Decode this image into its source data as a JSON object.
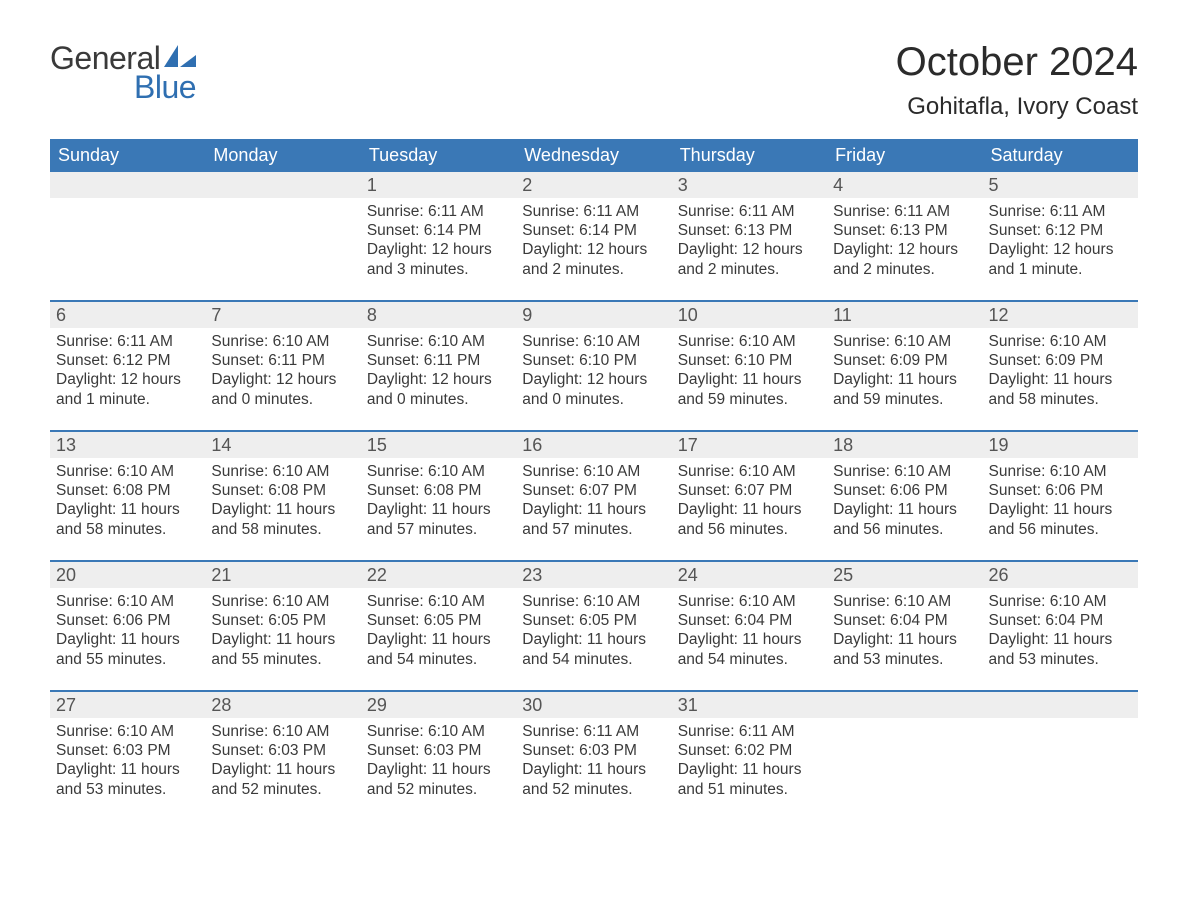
{
  "logo": {
    "part1": "General",
    "part2": "Blue",
    "sail_color": "#2f6fb1",
    "text_color_dark": "#3a3a3a"
  },
  "title": "October 2024",
  "location": "Gohitafla, Ivory Coast",
  "colors": {
    "header_bg": "#3a78b6",
    "header_text": "#ffffff",
    "daynum_bg": "#eeeeee",
    "daynum_text": "#555555",
    "body_text": "#3a3a3a",
    "rule": "#3a78b6",
    "page_bg": "#ffffff"
  },
  "typography": {
    "title_fontsize": 40,
    "location_fontsize": 24,
    "weekday_fontsize": 18,
    "daynum_fontsize": 18,
    "cell_fontsize": 15.5,
    "logo_fontsize": 32
  },
  "weekdays": [
    "Sunday",
    "Monday",
    "Tuesday",
    "Wednesday",
    "Thursday",
    "Friday",
    "Saturday"
  ],
  "weeks": [
    [
      {
        "day": "",
        "lines": [
          "",
          "",
          "",
          ""
        ]
      },
      {
        "day": "",
        "lines": [
          "",
          "",
          "",
          ""
        ]
      },
      {
        "day": "1",
        "lines": [
          "Sunrise: 6:11 AM",
          "Sunset: 6:14 PM",
          "Daylight: 12 hours",
          "and 3 minutes."
        ]
      },
      {
        "day": "2",
        "lines": [
          "Sunrise: 6:11 AM",
          "Sunset: 6:14 PM",
          "Daylight: 12 hours",
          "and 2 minutes."
        ]
      },
      {
        "day": "3",
        "lines": [
          "Sunrise: 6:11 AM",
          "Sunset: 6:13 PM",
          "Daylight: 12 hours",
          "and 2 minutes."
        ]
      },
      {
        "day": "4",
        "lines": [
          "Sunrise: 6:11 AM",
          "Sunset: 6:13 PM",
          "Daylight: 12 hours",
          "and 2 minutes."
        ]
      },
      {
        "day": "5",
        "lines": [
          "Sunrise: 6:11 AM",
          "Sunset: 6:12 PM",
          "Daylight: 12 hours",
          "and 1 minute."
        ]
      }
    ],
    [
      {
        "day": "6",
        "lines": [
          "Sunrise: 6:11 AM",
          "Sunset: 6:12 PM",
          "Daylight: 12 hours",
          "and 1 minute."
        ]
      },
      {
        "day": "7",
        "lines": [
          "Sunrise: 6:10 AM",
          "Sunset: 6:11 PM",
          "Daylight: 12 hours",
          "and 0 minutes."
        ]
      },
      {
        "day": "8",
        "lines": [
          "Sunrise: 6:10 AM",
          "Sunset: 6:11 PM",
          "Daylight: 12 hours",
          "and 0 minutes."
        ]
      },
      {
        "day": "9",
        "lines": [
          "Sunrise: 6:10 AM",
          "Sunset: 6:10 PM",
          "Daylight: 12 hours",
          "and 0 minutes."
        ]
      },
      {
        "day": "10",
        "lines": [
          "Sunrise: 6:10 AM",
          "Sunset: 6:10 PM",
          "Daylight: 11 hours",
          "and 59 minutes."
        ]
      },
      {
        "day": "11",
        "lines": [
          "Sunrise: 6:10 AM",
          "Sunset: 6:09 PM",
          "Daylight: 11 hours",
          "and 59 minutes."
        ]
      },
      {
        "day": "12",
        "lines": [
          "Sunrise: 6:10 AM",
          "Sunset: 6:09 PM",
          "Daylight: 11 hours",
          "and 58 minutes."
        ]
      }
    ],
    [
      {
        "day": "13",
        "lines": [
          "Sunrise: 6:10 AM",
          "Sunset: 6:08 PM",
          "Daylight: 11 hours",
          "and 58 minutes."
        ]
      },
      {
        "day": "14",
        "lines": [
          "Sunrise: 6:10 AM",
          "Sunset: 6:08 PM",
          "Daylight: 11 hours",
          "and 58 minutes."
        ]
      },
      {
        "day": "15",
        "lines": [
          "Sunrise: 6:10 AM",
          "Sunset: 6:08 PM",
          "Daylight: 11 hours",
          "and 57 minutes."
        ]
      },
      {
        "day": "16",
        "lines": [
          "Sunrise: 6:10 AM",
          "Sunset: 6:07 PM",
          "Daylight: 11 hours",
          "and 57 minutes."
        ]
      },
      {
        "day": "17",
        "lines": [
          "Sunrise: 6:10 AM",
          "Sunset: 6:07 PM",
          "Daylight: 11 hours",
          "and 56 minutes."
        ]
      },
      {
        "day": "18",
        "lines": [
          "Sunrise: 6:10 AM",
          "Sunset: 6:06 PM",
          "Daylight: 11 hours",
          "and 56 minutes."
        ]
      },
      {
        "day": "19",
        "lines": [
          "Sunrise: 6:10 AM",
          "Sunset: 6:06 PM",
          "Daylight: 11 hours",
          "and 56 minutes."
        ]
      }
    ],
    [
      {
        "day": "20",
        "lines": [
          "Sunrise: 6:10 AM",
          "Sunset: 6:06 PM",
          "Daylight: 11 hours",
          "and 55 minutes."
        ]
      },
      {
        "day": "21",
        "lines": [
          "Sunrise: 6:10 AM",
          "Sunset: 6:05 PM",
          "Daylight: 11 hours",
          "and 55 minutes."
        ]
      },
      {
        "day": "22",
        "lines": [
          "Sunrise: 6:10 AM",
          "Sunset: 6:05 PM",
          "Daylight: 11 hours",
          "and 54 minutes."
        ]
      },
      {
        "day": "23",
        "lines": [
          "Sunrise: 6:10 AM",
          "Sunset: 6:05 PM",
          "Daylight: 11 hours",
          "and 54 minutes."
        ]
      },
      {
        "day": "24",
        "lines": [
          "Sunrise: 6:10 AM",
          "Sunset: 6:04 PM",
          "Daylight: 11 hours",
          "and 54 minutes."
        ]
      },
      {
        "day": "25",
        "lines": [
          "Sunrise: 6:10 AM",
          "Sunset: 6:04 PM",
          "Daylight: 11 hours",
          "and 53 minutes."
        ]
      },
      {
        "day": "26",
        "lines": [
          "Sunrise: 6:10 AM",
          "Sunset: 6:04 PM",
          "Daylight: 11 hours",
          "and 53 minutes."
        ]
      }
    ],
    [
      {
        "day": "27",
        "lines": [
          "Sunrise: 6:10 AM",
          "Sunset: 6:03 PM",
          "Daylight: 11 hours",
          "and 53 minutes."
        ]
      },
      {
        "day": "28",
        "lines": [
          "Sunrise: 6:10 AM",
          "Sunset: 6:03 PM",
          "Daylight: 11 hours",
          "and 52 minutes."
        ]
      },
      {
        "day": "29",
        "lines": [
          "Sunrise: 6:10 AM",
          "Sunset: 6:03 PM",
          "Daylight: 11 hours",
          "and 52 minutes."
        ]
      },
      {
        "day": "30",
        "lines": [
          "Sunrise: 6:11 AM",
          "Sunset: 6:03 PM",
          "Daylight: 11 hours",
          "and 52 minutes."
        ]
      },
      {
        "day": "31",
        "lines": [
          "Sunrise: 6:11 AM",
          "Sunset: 6:02 PM",
          "Daylight: 11 hours",
          "and 51 minutes."
        ]
      },
      {
        "day": "",
        "lines": [
          "",
          "",
          "",
          ""
        ]
      },
      {
        "day": "",
        "lines": [
          "",
          "",
          "",
          ""
        ]
      }
    ]
  ]
}
